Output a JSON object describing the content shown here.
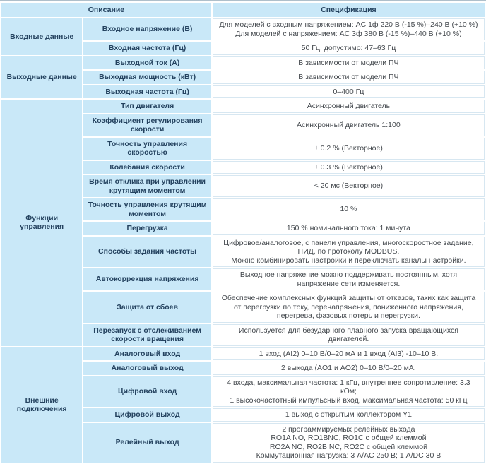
{
  "colors": {
    "cell_blue": "#c9e8f8",
    "label_text": "#24425f",
    "spec_text": "#42474c",
    "top_rule": "#aebfca",
    "spec_border": "#d7e7f1"
  },
  "table": {
    "header": {
      "description": "Описание",
      "specification": "Спецификация"
    },
    "sections": [
      {
        "category": "Входные данные",
        "rows": [
          {
            "label": "Входное напряжение (В)",
            "spec": "Для моделей с входным напряжением: AC 1ф 220 В (-15 %)–240 В (+10 %)\nДля моделей с напряжением: AC 3ф 380 В (-15 %)–440 В (+10 %)"
          },
          {
            "label": "Входная частота (Гц)",
            "spec": "50 Гц, допустимо: 47–63 Гц"
          }
        ]
      },
      {
        "category": "Выходные данные",
        "rows": [
          {
            "label": "Выходной ток (А)",
            "spec": "В зависимости от модели ПЧ"
          },
          {
            "label": "Выходная мощность (кВт)",
            "spec": "В зависимости от модели ПЧ"
          },
          {
            "label": "Выходная частота (Гц)",
            "spec": "0–400 Гц"
          }
        ]
      },
      {
        "category": "Функции управления",
        "rows": [
          {
            "label": "Тип двигателя",
            "spec": "Асинхронный двигатель"
          },
          {
            "label": "Коэффициент регулирования скорости",
            "spec": "Асинхронный двигатель 1:100"
          },
          {
            "label": "Точность управления скоростью",
            "spec": "± 0.2 % (Векторное)"
          },
          {
            "label": "Колебания скорости",
            "spec": "± 0.3 % (Векторное)"
          },
          {
            "label": "Время отклика при управлении крутящим моментом",
            "spec": "< 20 мс (Векторное)"
          },
          {
            "label": "Точность управления крутящим моментом",
            "spec": "10 %"
          },
          {
            "label": "Перегрузка",
            "spec": "150 % номинального тока: 1 минута"
          },
          {
            "label": "Способы задания частоты",
            "spec": "Цифровое/аналоговое, с панели управления, многоскоростное задание,\nПИД, по протоколу MODBUS.\nМожно комбинировать настройки и переключать каналы настройки."
          },
          {
            "label": "Автокоррекция напряжения",
            "spec": "Выходное напряжение можно поддерживать постоянным, хотя напряжение сети изменяется."
          },
          {
            "label": "Защита от сбоев",
            "spec": "Обеспечение комплексных функций защиты от отказов, таких как защита от перегрузки по току, перенапряжения, пониженного напряжения, перегрева, фазовых потерь и перегрузки."
          },
          {
            "label": "Перезапуск с отслеживанием скорости вращения",
            "spec": "Используется для безударного плавного запуска вращающихся двигателей."
          }
        ]
      },
      {
        "category": "Внешние подключения",
        "rows": [
          {
            "label": "Аналоговый вход",
            "spec": "1 вход (AI2) 0–10 В/0–20 мА и 1 вход (AI3) -10–10 В."
          },
          {
            "label": "Аналоговый выход",
            "spec": "2 выхода (AO1 и AO2) 0–10 В/0–20 мА."
          },
          {
            "label": "Цифровой вход",
            "spec": "4 входа, максимальная частота: 1 кГц, внутреннее сопротивление: 3.3 кОм;\n1 высокочастотный импульсный вход, максимальная частота: 50 кГц"
          },
          {
            "label": "Цифровой выход",
            "spec": "1 выход с открытым коллектором Y1"
          },
          {
            "label": "Релейный выход",
            "spec": "2 программируемых релейных выхода\nRO1A NO, RO1BNC, RO1C с общей клеммой\nRO2A NO, RO2B NC, RO2C с общей клеммой\nКоммутационная нагрузка: 3 А/AC 250 В; 1 А/DC 30 В"
          }
        ]
      }
    ]
  }
}
